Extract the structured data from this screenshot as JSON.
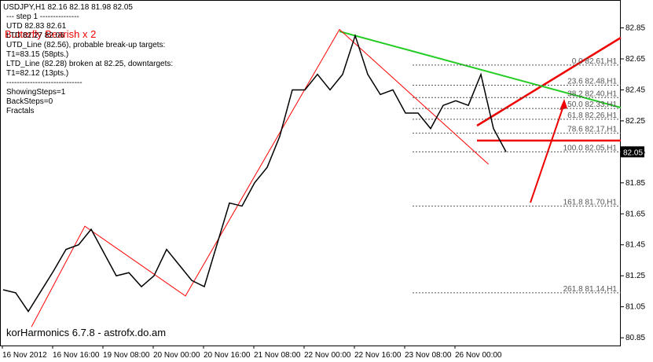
{
  "chart_data": {
    "type": "line",
    "title": "USDJPY,H1  82.16 82.18 81.98 82.05",
    "info_lines": [
      "---  step 1  ---------------",
      "UTD 82.83  82.61",
      "LTD 82.27 82.06",
      "UTD_Line (82.56), probable break-up targets:",
      "T1=83.15 (58pts.)",
      "LTD_Line (82.28) broken at 82.25, downtargets:",
      "T1=82.12 (13pts.)",
      "-----------------------------",
      "ShowingSteps=1",
      "BackSteps=0",
      "Fractals"
    ],
    "pattern_label": "Butterfly Bearish x 2",
    "watermark": "korHarmonics 6.7.8 - astrofx.do.am",
    "x_labels": [
      "16 Nov 2012",
      "16 Nov 16:00",
      "19 Nov 08:00",
      "20 Nov 00:00",
      "20 Nov 16:00",
      "21 Nov 08:00",
      "22 Nov 00:00",
      "22 Nov 16:00",
      "23 Nov 08:00",
      "26 Nov 00:00"
    ],
    "series": [
      {
        "name": "USDJPY,H1",
        "color": "#000000",
        "values": [
          81.16,
          81.14,
          81.02,
          81.15,
          81.28,
          81.42,
          81.45,
          81.55,
          81.4,
          81.25,
          81.27,
          81.18,
          81.25,
          81.42,
          81.32,
          81.22,
          81.18,
          81.45,
          81.72,
          81.7,
          81.85,
          81.95,
          82.15,
          82.45,
          82.45,
          82.55,
          82.45,
          82.55,
          82.8,
          82.55,
          82.42,
          82.45,
          82.3,
          82.3,
          82.2,
          82.35,
          82.38,
          82.35,
          82.55,
          82.2,
          82.05
        ]
      }
    ],
    "zigzag": {
      "color": "#ff0000",
      "x": [
        2.25,
        6.5,
        14.5,
        26.75,
        38.6
      ],
      "values": [
        80.92,
        81.57,
        81.12,
        82.84,
        81.97
      ]
    },
    "fib_levels": [
      {
        "value": 82.61,
        "label": "0.0 82.61,H1"
      },
      {
        "value": 82.48,
        "label": "23.6 82.48,H1"
      },
      {
        "value": 82.4,
        "label": "38.2 82.40,H1"
      },
      {
        "value": 82.33,
        "label": "50.0 82.33,H1"
      },
      {
        "value": 82.26,
        "label": "61.8 82.26,H1"
      },
      {
        "value": 82.17,
        "label": "78.6 82.17,H1"
      },
      {
        "value": 82.05,
        "label": "100.0 82.05,H1"
      },
      {
        "value": 81.7,
        "label": "161.8 81.70,H1"
      },
      {
        "value": 81.14,
        "label": "261.8 81.14,H1"
      }
    ],
    "ylim": [
      80.8,
      83.03
    ],
    "yticks": [
      82.85,
      82.65,
      82.45,
      82.25,
      82.05,
      81.85,
      81.65,
      81.45,
      81.25,
      81.05,
      80.85
    ]
  }
}
